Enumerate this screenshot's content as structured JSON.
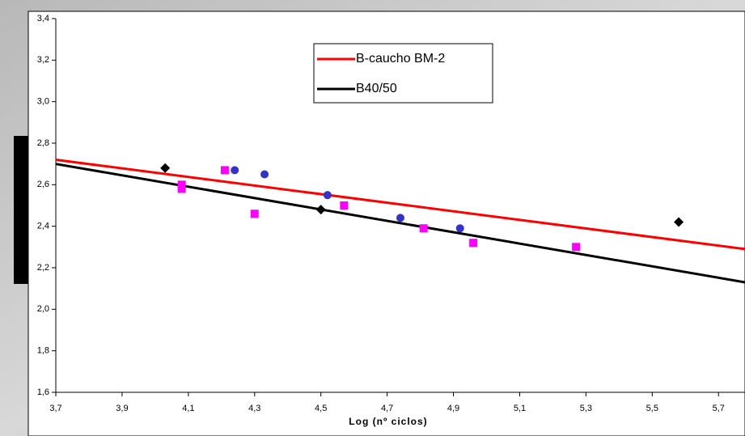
{
  "chart_data": {
    "type": "scatter",
    "x_label": "Log (nº ciclos)",
    "xlim": [
      3.7,
      5.78
    ],
    "ylim": [
      1.6,
      3.4
    ],
    "xticks": [
      {
        "value": 3.7,
        "label": "3,7"
      },
      {
        "value": 3.9,
        "label": "3,9"
      },
      {
        "value": 4.1,
        "label": "4,1"
      },
      {
        "value": 4.3,
        "label": "4,3"
      },
      {
        "value": 4.5,
        "label": "4,5"
      },
      {
        "value": 4.7,
        "label": "4,7"
      },
      {
        "value": 4.9,
        "label": "4,9"
      },
      {
        "value": 5.1,
        "label": "5,1"
      },
      {
        "value": 5.3,
        "label": "5,3"
      },
      {
        "value": 5.5,
        "label": "5,5"
      },
      {
        "value": 5.7,
        "label": "5,7"
      }
    ],
    "yticks": [
      {
        "value": 1.6,
        "label": "1,6"
      },
      {
        "value": 1.8,
        "label": "1,8"
      },
      {
        "value": 2.0,
        "label": "2,0"
      },
      {
        "value": 2.2,
        "label": "2,2"
      },
      {
        "value": 2.4,
        "label": "2,4"
      },
      {
        "value": 2.6,
        "label": "2,6"
      },
      {
        "value": 2.8,
        "label": "2,8"
      },
      {
        "value": 3.0,
        "label": "3,0"
      },
      {
        "value": 3.2,
        "label": "3,2"
      },
      {
        "value": 3.4,
        "label": "3,4"
      }
    ],
    "legend_position": "top",
    "series": [
      {
        "name": "B-caucho BM-2",
        "color": "#ff0000",
        "marker": "none",
        "x": [
          3.7,
          5.78
        ],
        "values": [
          2.72,
          2.29
        ]
      },
      {
        "name": "B40/50",
        "color": "#000000",
        "marker": "none",
        "x": [
          3.7,
          5.78
        ],
        "values": [
          2.7,
          2.13
        ]
      },
      {
        "color": "#000000",
        "marker": "diamond",
        "x": [
          4.03,
          4.5,
          5.58
        ],
        "values": [
          2.68,
          2.48,
          2.42
        ]
      },
      {
        "color": "#3333cc",
        "marker": "circle",
        "x": [
          4.24,
          4.33,
          4.52,
          4.74,
          4.92
        ],
        "values": [
          2.67,
          2.65,
          2.55,
          2.44,
          2.39
        ]
      },
      {
        "color": "#ff00ff",
        "marker": "square",
        "x": [
          4.08,
          4.08,
          4.21,
          4.3,
          4.57,
          4.81,
          4.96,
          5.27
        ],
        "values": [
          2.6,
          2.58,
          2.67,
          2.46,
          2.5,
          2.39,
          2.32,
          2.3
        ]
      }
    ]
  }
}
